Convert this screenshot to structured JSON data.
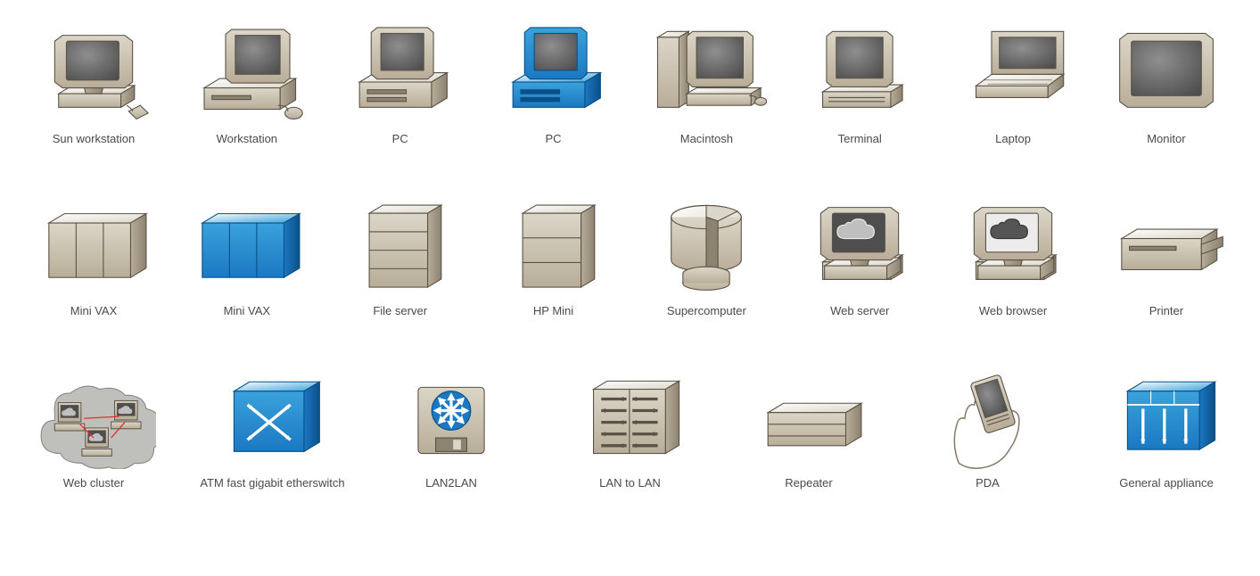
{
  "palette": {
    "beige_light": "#dcd6c8",
    "beige_mid": "#b8ad98",
    "beige_dark": "#8c8270",
    "beige_face": "#cfc7b6",
    "stroke": "#5a5246",
    "blue_light": "#3aa2db",
    "blue_mid": "#1b78c2",
    "blue_dark": "#0a4f86",
    "screen_dark": "#4e4e4e",
    "screen_light": "#8f8f8f",
    "white": "#ffffff",
    "cloud_gray": "#bfbfbbff",
    "label_color": "#4a4a4a",
    "label_fontsize": 13
  },
  "rows": [
    {
      "items": [
        {
          "id": "sun-workstation",
          "label": "Sun workstation",
          "shape": "monitor",
          "accent": "beige",
          "extra": "puck"
        },
        {
          "id": "workstation",
          "label": "Workstation",
          "shape": "pc-side",
          "accent": "beige",
          "extra": "mouse"
        },
        {
          "id": "pc-beige",
          "label": "PC",
          "shape": "pc-front",
          "accent": "beige"
        },
        {
          "id": "pc-blue",
          "label": "PC",
          "shape": "pc-front",
          "accent": "blue"
        },
        {
          "id": "macintosh",
          "label": "Macintosh",
          "shape": "mac",
          "accent": "beige"
        },
        {
          "id": "terminal",
          "label": "Terminal",
          "shape": "terminal",
          "accent": "beige"
        },
        {
          "id": "laptop",
          "label": "Laptop",
          "shape": "laptop",
          "accent": "beige"
        },
        {
          "id": "monitor",
          "label": "Monitor",
          "shape": "monitor-plain",
          "accent": "beige"
        }
      ]
    },
    {
      "items": [
        {
          "id": "mini-vax-beige",
          "label": "Mini VAX",
          "shape": "cabinet-wide",
          "accent": "beige"
        },
        {
          "id": "mini-vax-blue",
          "label": "Mini VAX",
          "shape": "cabinet-wide",
          "accent": "blue"
        },
        {
          "id": "file-server",
          "label": "File server",
          "shape": "cabinet-tall",
          "accent": "beige",
          "slots": 4
        },
        {
          "id": "hp-mini",
          "label": "HP Mini",
          "shape": "cabinet-tall",
          "accent": "beige",
          "slots": 3
        },
        {
          "id": "supercomputer",
          "label": "Supercomputer",
          "shape": "cylinder-cut",
          "accent": "beige"
        },
        {
          "id": "web-server",
          "label": "Web server",
          "shape": "pc-cloud",
          "accent": "beige",
          "screen": "dark"
        },
        {
          "id": "web-browser",
          "label": "Web browser",
          "shape": "pc-cloud",
          "accent": "beige",
          "screen": "light"
        },
        {
          "id": "printer",
          "label": "Printer",
          "shape": "printer",
          "accent": "beige"
        }
      ]
    },
    {
      "items": [
        {
          "id": "web-cluster",
          "label": "Web cluster",
          "shape": "cloud-cluster",
          "accent": "beige"
        },
        {
          "id": "atm-switch",
          "label": "ATM fast gigabit etherswitch",
          "shape": "switch-x",
          "accent": "blue"
        },
        {
          "id": "lan2lan",
          "label": "LAN2LAN",
          "shape": "disk-router",
          "accent": "beige"
        },
        {
          "id": "lan-to-lan",
          "label": "LAN to LAN",
          "shape": "cabinet-arrows",
          "accent": "beige"
        },
        {
          "id": "repeater",
          "label": "Repeater",
          "shape": "box-low",
          "accent": "beige"
        },
        {
          "id": "pda",
          "label": "PDA",
          "shape": "pda-hand",
          "accent": "beige"
        },
        {
          "id": "general-appliance",
          "label": "General appliance",
          "shape": "box-arrows",
          "accent": "blue"
        }
      ]
    }
  ]
}
